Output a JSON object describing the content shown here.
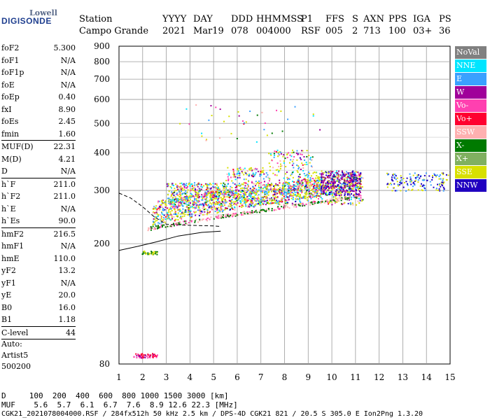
{
  "logo": {
    "top": "Lowell",
    "bottom": "DIGISONDE"
  },
  "header": {
    "row1": [
      "Station",
      "YYYY",
      "DAY",
      "DDD",
      "HHMMSS",
      "P1",
      "FFS",
      "S",
      "AXN",
      "PPS",
      "IGA",
      "PS"
    ],
    "row2": [
      "Campo Grande",
      "2021",
      "Mar19",
      "078",
      "004000",
      "RSF",
      "005",
      "2",
      "713",
      "100",
      "03+",
      "36"
    ]
  },
  "params": [
    {
      "label": "foF2",
      "value": "5.300"
    },
    {
      "label": "foF1",
      "value": "N/A"
    },
    {
      "label": "foF1p",
      "value": "N/A"
    },
    {
      "label": "foE",
      "value": "N/A"
    },
    {
      "label": "foEp",
      "value": "0.40"
    },
    {
      "label": "fxI",
      "value": "8.90"
    },
    {
      "label": "foEs",
      "value": "2.45"
    },
    {
      "label": "fmin",
      "value": "1.60"
    },
    {
      "label": "MUF(D)",
      "value": "22.31"
    },
    {
      "label": "M(D)",
      "value": "4.21"
    },
    {
      "label": "D",
      "value": "N/A"
    },
    {
      "label": "h`F",
      "value": "211.0"
    },
    {
      "label": "h`F2",
      "value": "211.0"
    },
    {
      "label": "h`E",
      "value": "N/A"
    },
    {
      "label": "h`Es",
      "value": "90.0"
    },
    {
      "label": "hmF2",
      "value": "216.5"
    },
    {
      "label": "hmF1",
      "value": "N/A"
    },
    {
      "label": "hmE",
      "value": "110.0"
    },
    {
      "label": "yF2",
      "value": "13.2"
    },
    {
      "label": "yF1",
      "value": "N/A"
    },
    {
      "label": "yE",
      "value": "20.0"
    },
    {
      "label": "B0",
      "value": "16.0"
    },
    {
      "label": "B1",
      "value": "1.18"
    },
    {
      "label": "C-level",
      "value": "44"
    }
  ],
  "auto": {
    "line1": "Auto:",
    "line2": "Artist5",
    "line3": "500200"
  },
  "legend": [
    {
      "label": "NoVal",
      "color": "#808080"
    },
    {
      "label": "NNE",
      "color": "#00e5ff"
    },
    {
      "label": "E",
      "color": "#3aa0ff"
    },
    {
      "label": "W",
      "color": "#a0009a"
    },
    {
      "label": "Vo-",
      "color": "#ff40b0"
    },
    {
      "label": "Vo+",
      "color": "#ff0030"
    },
    {
      "label": "SSW",
      "color": "#ffb0b0"
    },
    {
      "label": "X-",
      "color": "#007a00"
    },
    {
      "label": "X+",
      "color": "#80b060"
    },
    {
      "label": "SSE",
      "color": "#d8e000"
    },
    {
      "label": "NNW",
      "color": "#2000c0"
    }
  ],
  "footer": {
    "d_row": "D     100  200  400  600  800 1000 1500 3000 [km]",
    "muf_row": "MUF    5.6  5.7  6.1  6.7  7.6  8.9 12.6 22.3 [MHz]",
    "file_row": "CGK21_2021078004000.RSF / 284fx512h 50 kHz 2.5 km / DPS-4D CGK21 821 / 20.5 S 305.0 E Ion2Png 1.3.20"
  },
  "chart_data": {
    "type": "scatter",
    "title": "",
    "xlabel": "",
    "ylabel": "",
    "xlim": [
      1,
      15
    ],
    "ylim": [
      80,
      900
    ],
    "y_scale": "log",
    "x_ticks": [
      1,
      2,
      3,
      4,
      5,
      6,
      7,
      8,
      9,
      10,
      11,
      12,
      13,
      14,
      15
    ],
    "y_ticks": [
      80,
      200,
      300,
      400,
      500,
      600,
      700,
      800,
      900
    ],
    "grid": true,
    "clusters": [
      {
        "name": "Es trace",
        "x_range": [
          1.6,
          2.6
        ],
        "y": 85
      },
      {
        "name": "Es second",
        "x_range": [
          1.8,
          2.6
        ],
        "y": 187
      },
      {
        "name": "F trace O",
        "x_range": [
          2.0,
          11.2
        ],
        "y_range": [
          225,
          320
        ]
      },
      {
        "name": "F spread",
        "x_range": [
          3.0,
          11.3
        ],
        "y_range": [
          280,
          410
        ]
      },
      {
        "name": "F echo right",
        "x_range": [
          12.3,
          14.9
        ],
        "y_range": [
          300,
          345
        ]
      }
    ],
    "profile_line": [
      [
        1.0,
        294
      ],
      [
        1.5,
        283
      ],
      [
        2.0,
        265
      ],
      [
        2.5,
        245
      ],
      [
        3.0,
        232
      ],
      [
        4.0,
        230
      ],
      [
        5.0,
        229
      ],
      [
        5.3,
        228
      ]
    ],
    "lower_line": [
      [
        1.0,
        190
      ],
      [
        1.8,
        196
      ],
      [
        2.6,
        203
      ],
      [
        3.5,
        212
      ],
      [
        4.5,
        218
      ],
      [
        5.3,
        220
      ]
    ]
  }
}
